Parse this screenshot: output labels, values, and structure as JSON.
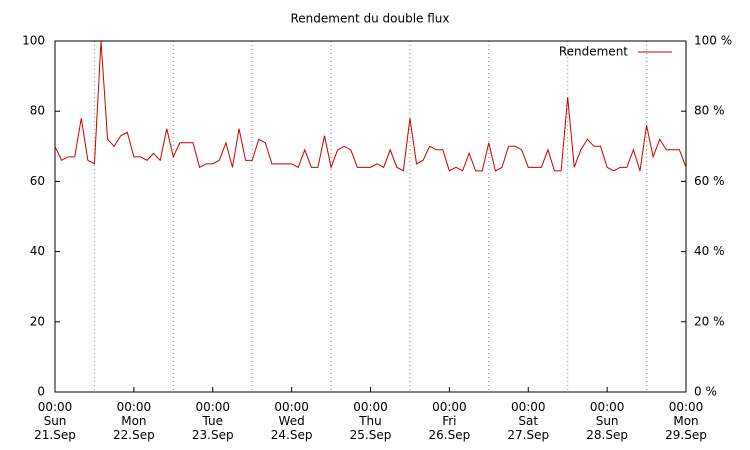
{
  "chart_data": {
    "type": "line",
    "title": "Rendement du double flux",
    "x": [
      0,
      2,
      4,
      6,
      8,
      10,
      12,
      14,
      16,
      18,
      20,
      22,
      24,
      26,
      28,
      30,
      32,
      34,
      36,
      38,
      40,
      42,
      44,
      46,
      48,
      50,
      52,
      54,
      56,
      58,
      60,
      62,
      64,
      66,
      68,
      70,
      72,
      74,
      76,
      78,
      80,
      82,
      84,
      86,
      88,
      90,
      92,
      94,
      96,
      98,
      100,
      102,
      104,
      106,
      108,
      110,
      112,
      114,
      116,
      118,
      120,
      122,
      124,
      126,
      128,
      130,
      132,
      134,
      136,
      138,
      140,
      142,
      144,
      146,
      148,
      150,
      152,
      154,
      156,
      158,
      160,
      162,
      164,
      166,
      168,
      170,
      172,
      174,
      176,
      178,
      180,
      182,
      184,
      186,
      188,
      190,
      192
    ],
    "series": [
      {
        "name": "Rendement",
        "color": "#cc0000",
        "values": [
          70,
          66,
          67,
          67,
          78,
          66,
          65,
          100,
          72,
          70,
          73,
          74,
          67,
          67,
          66,
          68,
          66,
          75,
          67,
          71,
          71,
          71,
          64,
          65,
          65,
          66,
          71,
          64,
          75,
          66,
          66,
          72,
          71,
          65,
          65,
          65,
          65,
          64,
          69,
          64,
          64,
          73,
          64,
          69,
          70,
          69,
          64,
          64,
          64,
          65,
          64,
          69,
          64,
          63,
          78,
          65,
          66,
          70,
          69,
          69,
          63,
          64,
          63,
          68,
          63,
          63,
          71,
          63,
          64,
          70,
          70,
          69,
          64,
          64,
          64,
          69,
          63,
          63,
          84,
          64,
          69,
          72,
          70,
          70,
          64,
          63,
          64,
          64,
          69,
          63,
          76,
          67,
          72,
          69,
          69,
          69,
          64
        ]
      }
    ],
    "xlim": [
      0,
      192
    ],
    "xticks": [
      {
        "value": 0,
        "label": "00:00\nSun\n21.Sep"
      },
      {
        "value": 24,
        "label": "00:00\nMon\n22.Sep"
      },
      {
        "value": 48,
        "label": "00:00\nTue\n23.Sep"
      },
      {
        "value": 72,
        "label": "00:00\nWed\n24.Sep"
      },
      {
        "value": 96,
        "label": "00:00\nThu\n25.Sep"
      },
      {
        "value": 120,
        "label": "00:00\nFri\n26.Sep"
      },
      {
        "value": 144,
        "label": "00:00\nSat\n27.Sep"
      },
      {
        "value": 168,
        "label": "00:00\nSun\n28.Sep"
      },
      {
        "value": 192,
        "label": "00:00\nMon\n29.Sep"
      }
    ],
    "xgrid": [
      12,
      36,
      60,
      84,
      108,
      132,
      156,
      180
    ],
    "ylim": [
      0,
      100
    ],
    "yticks": [
      0,
      20,
      40,
      60,
      80,
      100
    ],
    "y2lim": [
      0,
      100
    ],
    "y2ticks": [
      {
        "value": 0,
        "label": "0 %"
      },
      {
        "value": 20,
        "label": "20 %"
      },
      {
        "value": 40,
        "label": "40 %"
      },
      {
        "value": 60,
        "label": "60 %"
      },
      {
        "value": 80,
        "label": "80 %"
      },
      {
        "value": 100,
        "label": "100 %"
      }
    ],
    "legend": "top-right"
  }
}
